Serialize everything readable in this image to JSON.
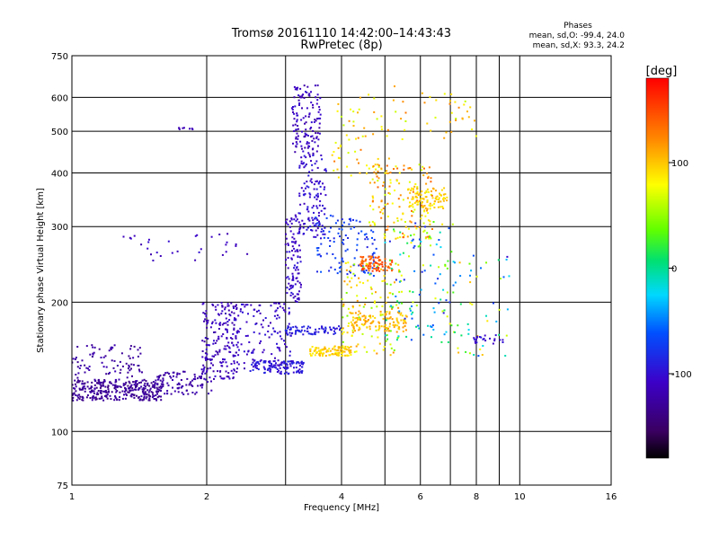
{
  "chart_data": {
    "type": "scatter",
    "title": "Tromsø 20161110 14:42:00–14:43:43",
    "subtitle": "RwPretec (8p)",
    "xlabel": "Frequency [MHz]",
    "ylabel": "Stationary phase Virtual Height [km]",
    "xscale": "log",
    "yscale": "log",
    "xlim": [
      1,
      16
    ],
    "ylim": [
      75,
      750
    ],
    "xticks": [
      1,
      2,
      4,
      6,
      8,
      10,
      16
    ],
    "xtick_labels": [
      "1",
      "2",
      "4",
      "6",
      "8",
      "10",
      "16"
    ],
    "yticks": [
      75,
      100,
      200,
      300,
      400,
      500,
      600,
      750
    ],
    "ytick_labels": [
      "75",
      "100",
      "200",
      "300",
      "400",
      "500",
      "600",
      "750"
    ],
    "xgrid": [
      1,
      2,
      3,
      4,
      5,
      6,
      7,
      8,
      9,
      10,
      16
    ],
    "ygrid": [
      75,
      100,
      200,
      300,
      400,
      500,
      600,
      750
    ],
    "grid": true,
    "phase_legend": {
      "title": "Phases",
      "lines": [
        "mean, sd,O: -99.4, 24.0",
        "mean, sd,X:  93.3, 24.2"
      ],
      "placement": "top-right"
    },
    "colorbar": {
      "label": "[deg]",
      "range": [
        -180,
        180
      ],
      "ticks": [
        100,
        0,
        -100
      ],
      "tick_labels": [
        "100",
        "0",
        "-100"
      ],
      "colormap": "rainbow"
    },
    "series": [
      {
        "clusters": [
          {
            "x": [
              1.0,
              1.6
            ],
            "h": [
              118,
              132
            ],
            "phase": [
              -140,
              -120
            ],
            "n": 320
          },
          {
            "x": [
              1.0,
              1.45
            ],
            "h": [
              130,
              160
            ],
            "phase": [
              -135,
              -115
            ],
            "n": 90
          },
          {
            "x": [
              1.55,
              2.05
            ],
            "h": [
              122,
              138
            ],
            "phase": [
              -130,
              -115
            ],
            "n": 90
          },
          {
            "x": [
              1.95,
              2.35
            ],
            "h": [
              132,
              200
            ],
            "phase": [
              -125,
              -100
            ],
            "n": 190
          },
          {
            "x": [
              2.3,
              3.1
            ],
            "h": [
              140,
              200
            ],
            "phase": [
              -120,
              -95
            ],
            "n": 130
          },
          {
            "x": [
              2.5,
              3.3
            ],
            "h": [
              136,
              146
            ],
            "phase": [
              -105,
              -85
            ],
            "n": 110
          },
          {
            "x": [
              3.0,
              3.25
            ],
            "h": [
              200,
              320
            ],
            "phase": [
              -120,
              -95
            ],
            "n": 100
          },
          {
            "x": [
              3.1,
              3.6
            ],
            "h": [
              440,
              640
            ],
            "phase": [
              -125,
              -100
            ],
            "n": 130
          },
          {
            "x": [
              3.2,
              3.7
            ],
            "h": [
              280,
              440
            ],
            "phase": [
              -115,
              -90
            ],
            "n": 130
          },
          {
            "x": [
              3.4,
              4.2
            ],
            "h": [
              150,
              158
            ],
            "phase": [
              80,
              110
            ],
            "n": 110
          },
          {
            "x": [
              3.0,
              4.0
            ],
            "h": [
              168,
              176
            ],
            "phase": [
              -100,
              -80
            ],
            "n": 70
          },
          {
            "x": [
              3.5,
              4.8
            ],
            "h": [
              230,
              320
            ],
            "phase": [
              -90,
              -60
            ],
            "n": 110
          },
          {
            "x": [
              4.0,
              5.4
            ],
            "h": [
              150,
              250
            ],
            "phase": [
              40,
              120
            ],
            "n": 130
          },
          {
            "x": [
              4.2,
              5.6
            ],
            "h": [
              170,
              190
            ],
            "phase": [
              90,
              120
            ],
            "n": 110
          },
          {
            "x": [
              4.4,
              5.2
            ],
            "h": [
              236,
              256
            ],
            "phase": [
              130,
              160
            ],
            "n": 80
          },
          {
            "x": [
              4.6,
              6.4
            ],
            "h": [
              280,
              420
            ],
            "phase": [
              60,
              140
            ],
            "n": 150
          },
          {
            "x": [
              5.6,
              6.9
            ],
            "h": [
              330,
              370
            ],
            "phase": [
              80,
              110
            ],
            "n": 90
          },
          {
            "x": [
              3.8,
              5.6
            ],
            "h": [
              380,
              640
            ],
            "phase": [
              60,
              130
            ],
            "n": 70
          },
          {
            "x": [
              5.0,
              7.2
            ],
            "h": [
              160,
              310
            ],
            "phase": [
              -90,
              90
            ],
            "n": 110
          },
          {
            "x": [
              6.6,
              9.5
            ],
            "h": [
              148,
              260
            ],
            "phase": [
              -110,
              110
            ],
            "n": 60
          },
          {
            "x": [
              7.8,
              9.2
            ],
            "h": [
              160,
              168
            ],
            "phase": [
              -110,
              -90
            ],
            "n": 22
          },
          {
            "x": [
              1.3,
              2.5
            ],
            "h": [
              250,
              290
            ],
            "phase": [
              -125,
              -100
            ],
            "n": 30
          },
          {
            "x": [
              1.7,
              1.9
            ],
            "h": [
              502,
              510
            ],
            "phase": [
              -120,
              -110
            ],
            "n": 8
          },
          {
            "x": [
              6.0,
              8.5
            ],
            "h": [
              480,
              620
            ],
            "phase": [
              60,
              130
            ],
            "n": 30
          }
        ]
      }
    ]
  }
}
